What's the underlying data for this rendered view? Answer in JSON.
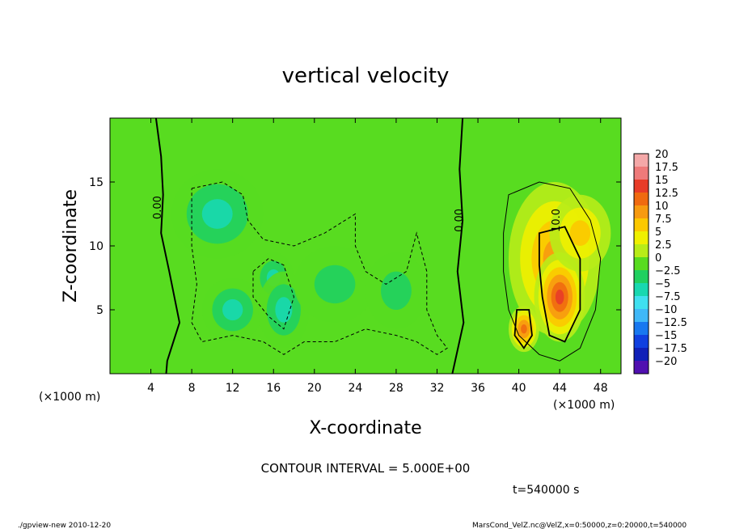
{
  "chart_data": {
    "type": "heatmap",
    "title": "vertical velocity",
    "xlabel": "X-coordinate",
    "ylabel": "Z-coordinate",
    "x_unit_left": "(×1000 m)",
    "x_unit_right": "(×1000 m)",
    "xlim": [
      0,
      50
    ],
    "ylim": [
      0,
      20
    ],
    "xticks": [
      4,
      8,
      12,
      16,
      20,
      24,
      28,
      32,
      36,
      40,
      44,
      48
    ],
    "yticks": [
      5,
      10,
      15
    ],
    "contour_labels": [
      {
        "text": "0.00",
        "x": 5,
        "z": 13
      },
      {
        "text": "0.00",
        "x": 34.5,
        "z": 12
      },
      {
        "text": "10.0",
        "x": 44,
        "z": 12
      }
    ],
    "colorbar": {
      "levels": [
        "20",
        "17.5",
        "15",
        "12.5",
        "10",
        "7.5",
        "5",
        "2.5",
        "0",
        "−2.5",
        "−5",
        "−7.5",
        "−10",
        "−12.5",
        "−15",
        "−17.5",
        "−20"
      ],
      "colors": [
        "#f4a8a8",
        "#ee7a7a",
        "#e83c28",
        "#f06a10",
        "#f79a10",
        "#fcc800",
        "#f0f000",
        "#b8ec18",
        "#58dc20",
        "#20d060",
        "#18d8b0",
        "#40e0f0",
        "#40b8f8",
        "#1878f0",
        "#1040e0",
        "#1020b8",
        "#5010b0"
      ]
    },
    "blobs": [
      {
        "x": 10.5,
        "z": 12.5,
        "value": -5.5,
        "sx": 4.5,
        "sz": 3.5
      },
      {
        "x": 12,
        "z": 5,
        "value": -5.5,
        "sx": 3,
        "sz": 2.5
      },
      {
        "x": 16,
        "z": 7.5,
        "value": -7.5,
        "sx": 2,
        "sz": 2
      },
      {
        "x": 17,
        "z": 5,
        "value": -6,
        "sx": 2.5,
        "sz": 3
      },
      {
        "x": 22,
        "z": 7,
        "value": -3.5,
        "sx": 4,
        "sz": 3
      },
      {
        "x": 28,
        "z": 6.5,
        "value": -3,
        "sx": 3,
        "sz": 3
      },
      {
        "x": 43.5,
        "z": 9,
        "value": 10,
        "sx": 4.5,
        "sz": 6
      },
      {
        "x": 44,
        "z": 6,
        "value": 13,
        "sx": 2.5,
        "sz": 3.5
      },
      {
        "x": 40.5,
        "z": 3.5,
        "value": 12,
        "sx": 1.5,
        "sz": 1.8
      },
      {
        "x": 46,
        "z": 11,
        "value": 7,
        "sx": 3,
        "sz": 3
      }
    ],
    "contour_interval": "CONTOUR INTERVAL = 5.000E+00",
    "time": "t=540000 s"
  },
  "footer": {
    "left": "./gpview-new  2010-12-20",
    "right": "MarsCond_VelZ.nc@VelZ,x=0:50000,z=0:20000,t=540000"
  }
}
